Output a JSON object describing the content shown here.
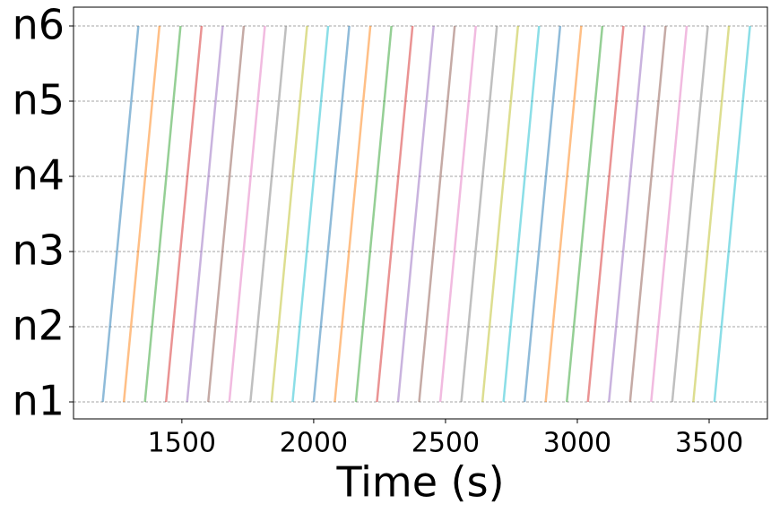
{
  "chart_data": {
    "type": "line",
    "xlabel": "Time (s)",
    "xlim": [
      1089,
      3721
    ],
    "ylim": [
      0.774,
      6.25
    ],
    "xticks": [
      1500,
      2000,
      2500,
      3000,
      3500
    ],
    "yticks": [
      {
        "value": 1,
        "label": "n1"
      },
      {
        "value": 2,
        "label": "n2"
      },
      {
        "value": 3,
        "label": "n3"
      },
      {
        "value": 4,
        "label": "n4"
      },
      {
        "value": 5,
        "label": "n5"
      },
      {
        "value": 6,
        "label": "n6"
      }
    ],
    "grid": true,
    "alpha": 0.5,
    "series": [
      {
        "color": "#1f77b4",
        "x": [
          1200,
          1227,
          1254,
          1281,
          1308,
          1335
        ],
        "values": [
          1,
          2,
          3,
          4,
          5,
          6
        ]
      },
      {
        "color": "#ff7f0e",
        "x": [
          1280,
          1307,
          1334,
          1361,
          1388,
          1415
        ],
        "values": [
          1,
          2,
          3,
          4,
          5,
          6
        ]
      },
      {
        "color": "#2ca02c",
        "x": [
          1360,
          1387,
          1414,
          1441,
          1468,
          1495
        ],
        "values": [
          1,
          2,
          3,
          4,
          5,
          6
        ]
      },
      {
        "color": "#d62728",
        "x": [
          1440,
          1467,
          1494,
          1521,
          1548,
          1575
        ],
        "values": [
          1,
          2,
          3,
          4,
          5,
          6
        ]
      },
      {
        "color": "#9467bd",
        "x": [
          1520,
          1547,
          1574,
          1601,
          1628,
          1655
        ],
        "values": [
          1,
          2,
          3,
          4,
          5,
          6
        ]
      },
      {
        "color": "#8c564b",
        "x": [
          1600,
          1627,
          1654,
          1681,
          1708,
          1735
        ],
        "values": [
          1,
          2,
          3,
          4,
          5,
          6
        ]
      },
      {
        "color": "#e377c2",
        "x": [
          1680,
          1707,
          1734,
          1761,
          1788,
          1815
        ],
        "values": [
          1,
          2,
          3,
          4,
          5,
          6
        ]
      },
      {
        "color": "#7f7f7f",
        "x": [
          1760,
          1787,
          1814,
          1841,
          1868,
          1895
        ],
        "values": [
          1,
          2,
          3,
          4,
          5,
          6
        ]
      },
      {
        "color": "#bcbd22",
        "x": [
          1840,
          1867,
          1894,
          1921,
          1948,
          1975
        ],
        "values": [
          1,
          2,
          3,
          4,
          5,
          6
        ]
      },
      {
        "color": "#17becf",
        "x": [
          1920,
          1947,
          1974,
          2001,
          2028,
          2055
        ],
        "values": [
          1,
          2,
          3,
          4,
          5,
          6
        ]
      },
      {
        "color": "#1f77b4",
        "x": [
          2000,
          2027,
          2054,
          2081,
          2108,
          2135
        ],
        "values": [
          1,
          2,
          3,
          4,
          5,
          6
        ]
      },
      {
        "color": "#ff7f0e",
        "x": [
          2080,
          2107,
          2134,
          2161,
          2188,
          2215
        ],
        "values": [
          1,
          2,
          3,
          4,
          5,
          6
        ]
      },
      {
        "color": "#2ca02c",
        "x": [
          2160,
          2187,
          2214,
          2241,
          2268,
          2295
        ],
        "values": [
          1,
          2,
          3,
          4,
          5,
          6
        ]
      },
      {
        "color": "#d62728",
        "x": [
          2240,
          2267,
          2294,
          2321,
          2348,
          2375
        ],
        "values": [
          1,
          2,
          3,
          4,
          5,
          6
        ]
      },
      {
        "color": "#9467bd",
        "x": [
          2320,
          2347,
          2374,
          2401,
          2428,
          2455
        ],
        "values": [
          1,
          2,
          3,
          4,
          5,
          6
        ]
      },
      {
        "color": "#8c564b",
        "x": [
          2400,
          2427,
          2454,
          2481,
          2508,
          2535
        ],
        "values": [
          1,
          2,
          3,
          4,
          5,
          6
        ]
      },
      {
        "color": "#e377c2",
        "x": [
          2480,
          2507,
          2534,
          2561,
          2588,
          2615
        ],
        "values": [
          1,
          2,
          3,
          4,
          5,
          6
        ]
      },
      {
        "color": "#7f7f7f",
        "x": [
          2560,
          2587,
          2614,
          2641,
          2668,
          2695
        ],
        "values": [
          1,
          2,
          3,
          4,
          5,
          6
        ]
      },
      {
        "color": "#bcbd22",
        "x": [
          2640,
          2667,
          2694,
          2721,
          2748,
          2775
        ],
        "values": [
          1,
          2,
          3,
          4,
          5,
          6
        ]
      },
      {
        "color": "#17becf",
        "x": [
          2720,
          2747,
          2774,
          2801,
          2828,
          2855
        ],
        "values": [
          1,
          2,
          3,
          4,
          5,
          6
        ]
      },
      {
        "color": "#1f77b4",
        "x": [
          2800,
          2827,
          2854,
          2881,
          2908,
          2935
        ],
        "values": [
          1,
          2,
          3,
          4,
          5,
          6
        ]
      },
      {
        "color": "#ff7f0e",
        "x": [
          2880,
          2907,
          2934,
          2961,
          2988,
          3015
        ],
        "values": [
          1,
          2,
          3,
          4,
          5,
          6
        ]
      },
      {
        "color": "#2ca02c",
        "x": [
          2960,
          2987,
          3014,
          3041,
          3068,
          3095
        ],
        "values": [
          1,
          2,
          3,
          4,
          5,
          6
        ]
      },
      {
        "color": "#d62728",
        "x": [
          3040,
          3067,
          3094,
          3121,
          3148,
          3175
        ],
        "values": [
          1,
          2,
          3,
          4,
          5,
          6
        ]
      },
      {
        "color": "#9467bd",
        "x": [
          3120,
          3147,
          3174,
          3201,
          3228,
          3255
        ],
        "values": [
          1,
          2,
          3,
          4,
          5,
          6
        ]
      },
      {
        "color": "#8c564b",
        "x": [
          3200,
          3227,
          3254,
          3281,
          3308,
          3335
        ],
        "values": [
          1,
          2,
          3,
          4,
          5,
          6
        ]
      },
      {
        "color": "#e377c2",
        "x": [
          3280,
          3307,
          3334,
          3361,
          3388,
          3415
        ],
        "values": [
          1,
          2,
          3,
          4,
          5,
          6
        ]
      },
      {
        "color": "#7f7f7f",
        "x": [
          3360,
          3387,
          3414,
          3441,
          3468,
          3495
        ],
        "values": [
          1,
          2,
          3,
          4,
          5,
          6
        ]
      },
      {
        "color": "#bcbd22",
        "x": [
          3440,
          3467,
          3494,
          3521,
          3548,
          3575
        ],
        "values": [
          1,
          2,
          3,
          4,
          5,
          6
        ]
      },
      {
        "color": "#17becf",
        "x": [
          3520,
          3547,
          3574,
          3601,
          3628,
          3655
        ],
        "values": [
          1,
          2,
          3,
          4,
          5,
          6
        ]
      }
    ]
  }
}
